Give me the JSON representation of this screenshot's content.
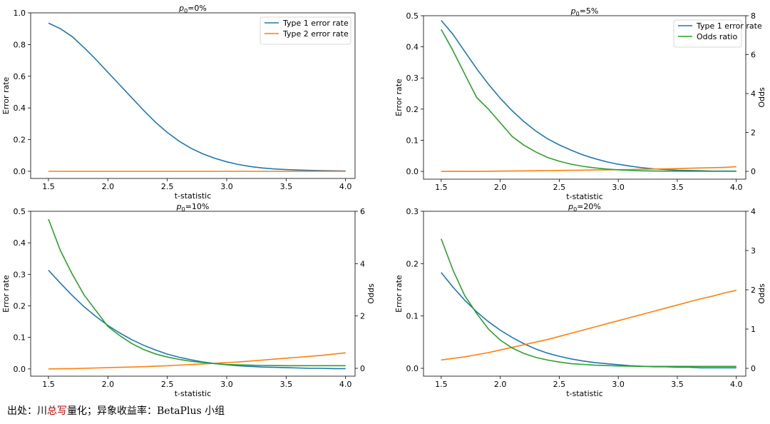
{
  "caption": {
    "prefix": "出处：川",
    "highlight": "总写",
    "suffix": "量化；异象收益率：BetaPlus 小组"
  },
  "chart_data": [
    {
      "type": "line",
      "title": "p0=0%",
      "title_base": "p",
      "title_sub": "0",
      "title_rest": "=0%",
      "xlabel": "t-statistic",
      "ylabel": "Error rate",
      "xlim": [
        1.35,
        4.08
      ],
      "xticks": [
        1.5,
        2.0,
        2.5,
        3.0,
        3.5,
        4.0
      ],
      "ylim": [
        -0.045,
        1.0
      ],
      "yticks": [
        0.0,
        0.2,
        0.4,
        0.6,
        0.8,
        1.0
      ],
      "ytick_decimals": 1,
      "grid": false,
      "legend": "top-right",
      "x": [
        1.5,
        1.6,
        1.7,
        1.8,
        1.9,
        2.0,
        2.1,
        2.2,
        2.3,
        2.4,
        2.5,
        2.6,
        2.7,
        2.8,
        2.9,
        3.0,
        3.1,
        3.2,
        3.3,
        3.4,
        3.5,
        3.6,
        3.7,
        3.8,
        3.9,
        4.0
      ],
      "series": [
        {
          "name": "Type 1 error rate",
          "color": "#1f77b4",
          "axis": "left",
          "values": [
            0.935,
            0.9,
            0.85,
            0.78,
            0.705,
            0.625,
            0.545,
            0.465,
            0.385,
            0.31,
            0.245,
            0.19,
            0.145,
            0.11,
            0.082,
            0.06,
            0.043,
            0.03,
            0.021,
            0.015,
            0.011,
            0.008,
            0.006,
            0.004,
            0.003,
            0.002
          ]
        },
        {
          "name": "Type 2 error rate",
          "color": "#ff7f0e",
          "axis": "left",
          "values": [
            0,
            0,
            0,
            0,
            0,
            0,
            0,
            0,
            0,
            0,
            0,
            0,
            0,
            0,
            0,
            0,
            0,
            0,
            0,
            0,
            0,
            0,
            0,
            0,
            0,
            0
          ]
        }
      ]
    },
    {
      "type": "line",
      "title": "p0=5%",
      "title_base": "p",
      "title_sub": "0",
      "title_rest": "=5%",
      "xlabel": "t-statistic",
      "ylabel": "Error rate",
      "y2label": "Odds",
      "xlim": [
        1.35,
        4.08
      ],
      "xticks": [
        1.5,
        2.0,
        2.5,
        3.0,
        3.5,
        4.0
      ],
      "ylim": [
        -0.025,
        0.5
      ],
      "yticks": [
        0.0,
        0.1,
        0.2,
        0.3,
        0.4,
        0.5
      ],
      "ytick_decimals": 1,
      "y2lim": [
        -0.4,
        8.0
      ],
      "y2ticks": [
        0,
        2,
        4,
        6,
        8
      ],
      "y2tick_decimals": 0,
      "grid": false,
      "legend": "top-right",
      "x": [
        1.5,
        1.6,
        1.7,
        1.8,
        1.9,
        2.0,
        2.1,
        2.2,
        2.3,
        2.4,
        2.5,
        2.6,
        2.7,
        2.8,
        2.9,
        3.0,
        3.1,
        3.2,
        3.3,
        3.4,
        3.5,
        3.6,
        3.7,
        3.8,
        3.9,
        4.0
      ],
      "series": [
        {
          "name": "Type 1 error rate",
          "color": "#1f77b4",
          "axis": "left",
          "values": [
            0.485,
            0.44,
            0.385,
            0.33,
            0.28,
            0.235,
            0.195,
            0.16,
            0.13,
            0.105,
            0.085,
            0.068,
            0.053,
            0.041,
            0.031,
            0.023,
            0.017,
            0.012,
            0.008,
            0.006,
            0.004,
            0.003,
            0.002,
            0.001,
            0.001,
            0.001
          ]
        },
        {
          "name": "",
          "color": "#ff7f0e",
          "axis": "left",
          "values": [
            0.0,
            0.0,
            0.0,
            0.0,
            0.0005,
            0.001,
            0.0012,
            0.0015,
            0.002,
            0.0025,
            0.003,
            0.0035,
            0.004,
            0.0045,
            0.005,
            0.0055,
            0.006,
            0.0068,
            0.0075,
            0.0083,
            0.009,
            0.01,
            0.011,
            0.012,
            0.013,
            0.015
          ]
        },
        {
          "name": "Odds ratio",
          "color": "#2ca02c",
          "axis": "right",
          "values": [
            7.3,
            6.2,
            5.0,
            3.8,
            3.2,
            2.5,
            1.8,
            1.35,
            1.0,
            0.72,
            0.52,
            0.37,
            0.26,
            0.18,
            0.12,
            0.08,
            0.05,
            0.03,
            0.02,
            0.015,
            0.01,
            0.008,
            0.006,
            0.005,
            0.004,
            0.003
          ]
        }
      ]
    },
    {
      "type": "line",
      "title": "p0=10%",
      "title_base": "p",
      "title_sub": "0",
      "title_rest": "=10%",
      "xlabel": "t-statistic",
      "ylabel": "Error rate",
      "y2label": "Odds",
      "xlim": [
        1.35,
        4.08
      ],
      "xticks": [
        1.5,
        2.0,
        2.5,
        3.0,
        3.5,
        4.0
      ],
      "ylim": [
        -0.023,
        0.5
      ],
      "yticks": [
        0.0,
        0.1,
        0.2,
        0.3,
        0.4,
        0.5
      ],
      "ytick_decimals": 1,
      "y2lim": [
        -0.3,
        6.0
      ],
      "y2ticks": [
        0,
        2,
        4,
        6
      ],
      "y2tick_decimals": 0,
      "grid": false,
      "x": [
        1.5,
        1.6,
        1.7,
        1.8,
        1.9,
        2.0,
        2.1,
        2.2,
        2.3,
        2.4,
        2.5,
        2.6,
        2.7,
        2.8,
        2.9,
        3.0,
        3.1,
        3.2,
        3.3,
        3.4,
        3.5,
        3.6,
        3.7,
        3.8,
        3.9,
        4.0
      ],
      "series": [
        {
          "name": "Type 1 error rate",
          "color": "#1f77b4",
          "axis": "left",
          "values": [
            0.313,
            0.272,
            0.233,
            0.197,
            0.166,
            0.138,
            0.114,
            0.093,
            0.075,
            0.06,
            0.047,
            0.037,
            0.029,
            0.022,
            0.017,
            0.013,
            0.01,
            0.008,
            0.006,
            0.005,
            0.004,
            0.003,
            0.002,
            0.002,
            0.001,
            0.001
          ]
        },
        {
          "name": "Type 2 error rate",
          "color": "#ff7f0e",
          "axis": "left",
          "values": [
            0.0,
            0.0005,
            0.001,
            0.002,
            0.003,
            0.004,
            0.005,
            0.006,
            0.007,
            0.009,
            0.01,
            0.012,
            0.014,
            0.016,
            0.018,
            0.02,
            0.022,
            0.025,
            0.028,
            0.031,
            0.034,
            0.037,
            0.04,
            0.043,
            0.047,
            0.051
          ]
        },
        {
          "name": "Odds ratio",
          "color": "#2ca02c",
          "axis": "right",
          "values": [
            5.7,
            4.5,
            3.6,
            2.8,
            2.2,
            1.6,
            1.25,
            0.95,
            0.72,
            0.55,
            0.43,
            0.34,
            0.27,
            0.22,
            0.18,
            0.15,
            0.13,
            0.12,
            0.11,
            0.105,
            0.1,
            0.1,
            0.1,
            0.1,
            0.1,
            0.1
          ]
        }
      ]
    },
    {
      "type": "line",
      "title": "p0=20%",
      "title_base": "p",
      "title_sub": "0",
      "title_rest": "=20%",
      "xlabel": "t-statistic",
      "ylabel": "Error rate",
      "y2label": "Odds",
      "xlim": [
        1.35,
        4.08
      ],
      "xticks": [
        1.5,
        2.0,
        2.5,
        3.0,
        3.5,
        4.0
      ],
      "ylim": [
        -0.015,
        0.3
      ],
      "yticks": [
        0.0,
        0.1,
        0.2,
        0.3
      ],
      "ytick_decimals": 1,
      "y2lim": [
        -0.2,
        4.0
      ],
      "y2ticks": [
        0,
        1,
        2,
        3,
        4
      ],
      "y2tick_decimals": 0,
      "grid": false,
      "x": [
        1.5,
        1.6,
        1.7,
        1.8,
        1.9,
        2.0,
        2.1,
        2.2,
        2.3,
        2.4,
        2.5,
        2.6,
        2.7,
        2.8,
        2.9,
        3.0,
        3.1,
        3.2,
        3.3,
        3.4,
        3.5,
        3.6,
        3.7,
        3.8,
        3.9,
        4.0
      ],
      "series": [
        {
          "name": "Type 1 error rate",
          "color": "#1f77b4",
          "axis": "left",
          "values": [
            0.183,
            0.155,
            0.13,
            0.108,
            0.089,
            0.073,
            0.059,
            0.047,
            0.037,
            0.029,
            0.023,
            0.018,
            0.014,
            0.011,
            0.009,
            0.007,
            0.005,
            0.004,
            0.003,
            0.003,
            0.002,
            0.002,
            0.001,
            0.001,
            0.001,
            0.001
          ]
        },
        {
          "name": "Type 2 error rate",
          "color": "#ff7f0e",
          "axis": "left",
          "values": [
            0.016,
            0.019,
            0.022,
            0.026,
            0.03,
            0.035,
            0.04,
            0.045,
            0.05,
            0.055,
            0.061,
            0.067,
            0.073,
            0.079,
            0.085,
            0.091,
            0.097,
            0.103,
            0.109,
            0.115,
            0.121,
            0.127,
            0.133,
            0.138,
            0.144,
            0.149
          ]
        },
        {
          "name": "Odds ratio",
          "color": "#2ca02c",
          "axis": "right",
          "values": [
            3.3,
            2.5,
            1.85,
            1.4,
            1.0,
            0.72,
            0.52,
            0.38,
            0.28,
            0.21,
            0.16,
            0.12,
            0.1,
            0.08,
            0.07,
            0.06,
            0.055,
            0.05,
            0.05,
            0.05,
            0.05,
            0.05,
            0.05,
            0.05,
            0.05,
            0.05
          ]
        }
      ]
    }
  ]
}
